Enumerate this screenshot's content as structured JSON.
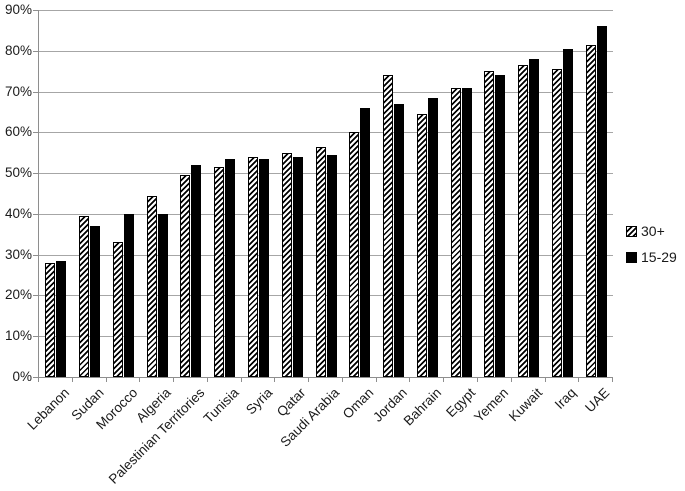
{
  "chart_data": {
    "type": "bar",
    "title": "",
    "xlabel": "",
    "ylabel": "",
    "categories": [
      "Lebanon",
      "Sudan",
      "Morocco",
      "Algeria",
      "Palestinian Territories",
      "Tunisia",
      "Syria",
      "Qatar",
      "Saudi Arabia",
      "Oman",
      "Jordan",
      "Bahrain",
      "Egypt",
      "Yemen",
      "Kuwait",
      "Iraq",
      "UAE"
    ],
    "series": [
      {
        "name": "30+",
        "style": "hatched",
        "values": [
          28,
          39.5,
          33,
          44.5,
          49.5,
          51.5,
          54,
          55,
          56.5,
          60,
          74,
          64.5,
          71,
          75,
          76.5,
          75.5,
          81.5
        ]
      },
      {
        "name": "15-29",
        "style": "solid",
        "values": [
          28.5,
          37,
          40,
          40,
          52,
          53.5,
          53.5,
          54,
          54.5,
          66,
          67,
          68.5,
          71,
          74,
          78,
          80.5,
          86
        ]
      }
    ],
    "ylim": [
      0,
      90
    ],
    "ytick_step": 10,
    "ytick_labels": [
      "0%",
      "10%",
      "20%",
      "30%",
      "40%",
      "50%",
      "60%",
      "70%",
      "80%",
      "90%"
    ],
    "grid": "horizontal",
    "legend_position": "right",
    "x_label_rotation_deg": 45
  },
  "colors": {
    "background": "#ffffff",
    "grid": "#a6a6a6",
    "axis": "#8e8e8e",
    "text": "#1a1a1a",
    "bar_solid": "#000000",
    "bar_hatch_line": "#000000"
  }
}
